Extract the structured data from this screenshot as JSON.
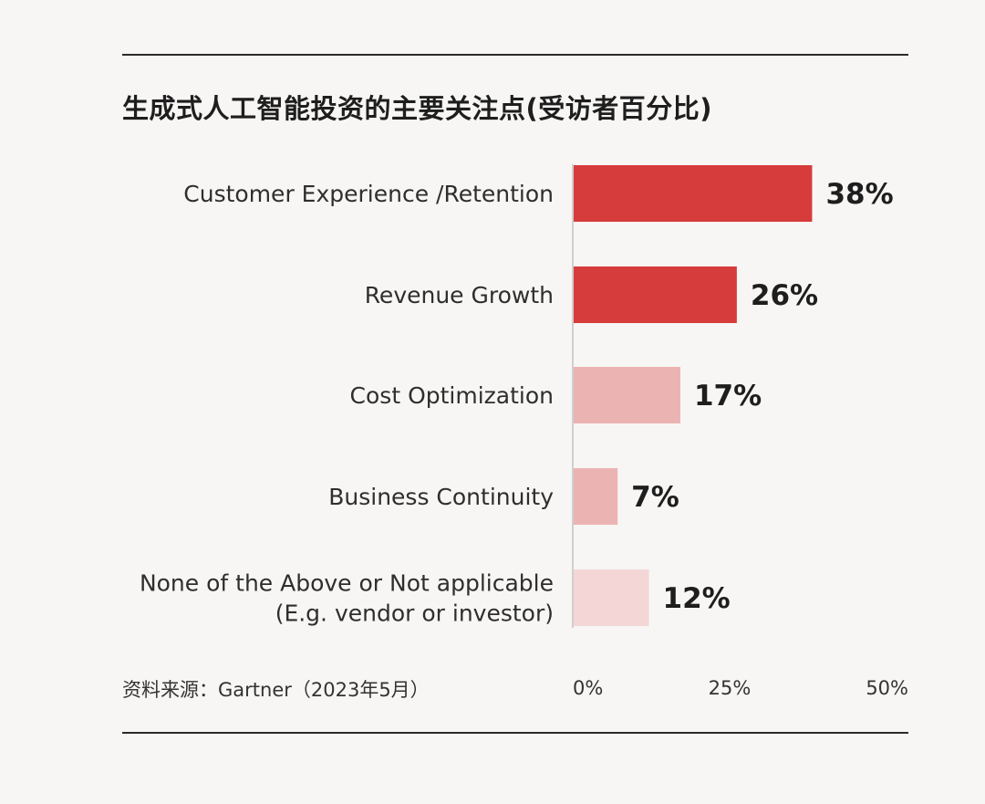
{
  "title": "生成式人工智能投资的主要关注点(受访者百分比)",
  "source": "资料来源：Gartner（2023年5月）",
  "chart_data": {
    "type": "bar",
    "orientation": "horizontal",
    "title": "生成式人工智能投资的主要关注点(受访者百分比)",
    "categories": [
      [
        "Customer Experience /Retention"
      ],
      [
        "Revenue Growth"
      ],
      [
        "Cost Optimization"
      ],
      [
        "Business Continuity"
      ],
      [
        "None of the Above or Not applicable",
        "(E.g. vendor or investor)"
      ]
    ],
    "values": [
      38,
      26,
      17,
      7,
      12
    ],
    "value_labels": [
      "38%",
      "26%",
      "17%",
      "7%",
      "12%"
    ],
    "bar_colors": [
      "#d63c3c",
      "#d63c3c",
      "#ecb3b3",
      "#ecb3b3",
      "#f4d6d6"
    ],
    "xticks": [
      0,
      25,
      50
    ],
    "xtick_labels": [
      "0%",
      "25%",
      "50%"
    ],
    "xlim": [
      0,
      50
    ],
    "xlabel": "",
    "ylabel": "",
    "grid": false,
    "legend": "none"
  }
}
